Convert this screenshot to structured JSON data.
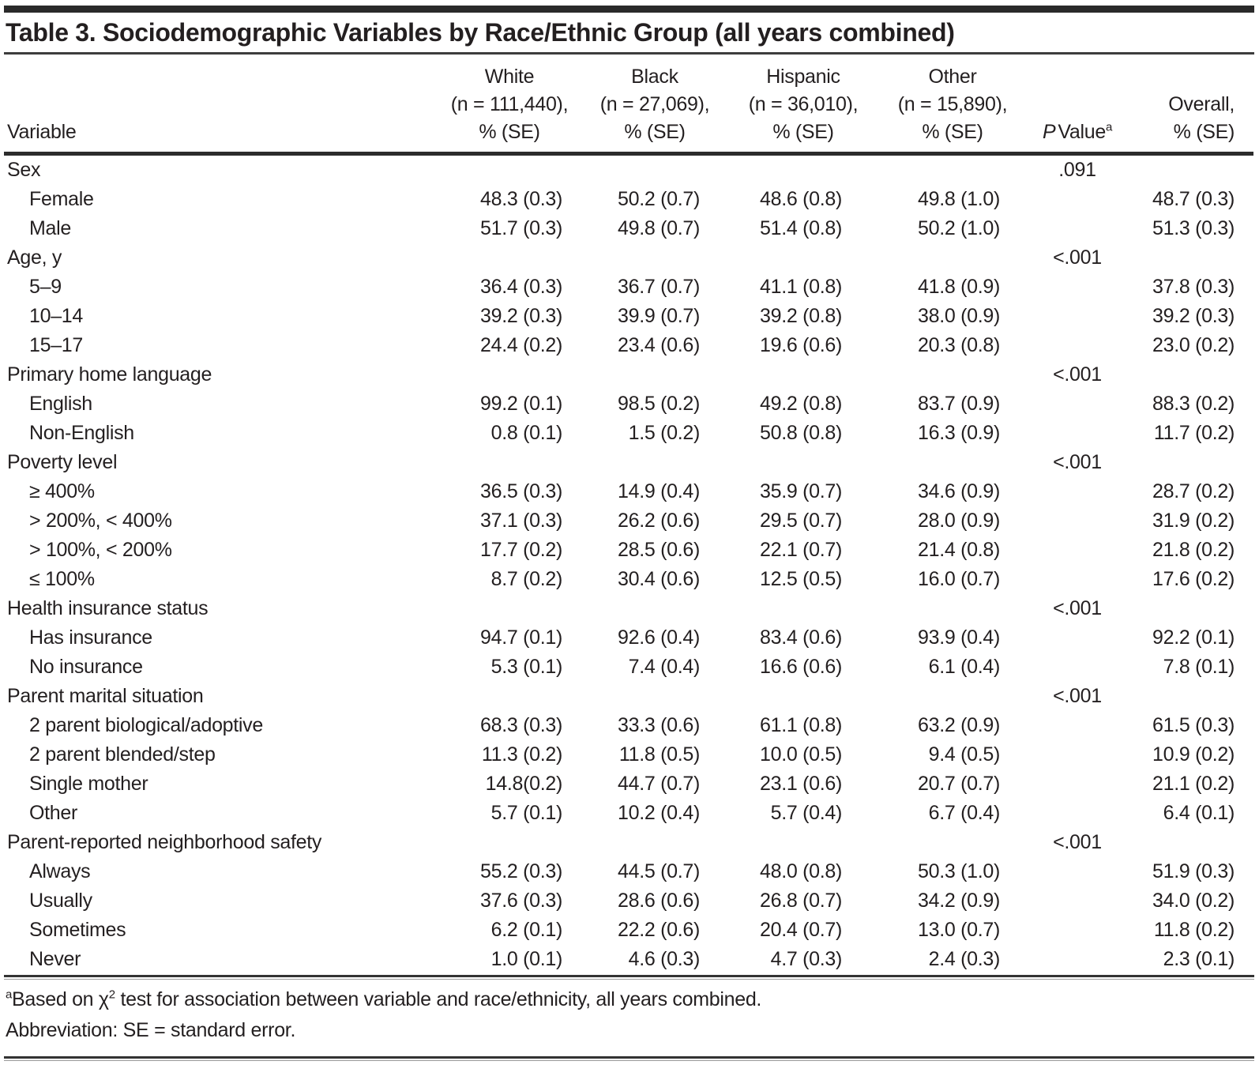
{
  "title": "Table 3. Sociodemographic Variables by Race/Ethnic Group (all years combined)",
  "header": {
    "variable": "Variable",
    "groups": [
      {
        "name": "White",
        "n": "(n = 111,440),",
        "pse": "% (SE)"
      },
      {
        "name": "Black",
        "n": "(n = 27,069),",
        "pse": "% (SE)"
      },
      {
        "name": "Hispanic",
        "n": "(n = 36,010),",
        "pse": "% (SE)"
      },
      {
        "name": "Other",
        "n": "(n = 15,890),",
        "pse": "% (SE)"
      }
    ],
    "p_value": {
      "italic": "P",
      "rest": "Value",
      "sup": "a"
    },
    "overall": {
      "line1": "Overall,",
      "line2": "% (SE)"
    }
  },
  "rows": [
    {
      "type": "section",
      "label": "Sex",
      "p": ".091"
    },
    {
      "type": "item",
      "label": "Female",
      "values": [
        "48.3 (0.3)",
        "50.2 (0.7)",
        "48.6 (0.8)",
        "49.8 (1.0)"
      ],
      "overall": "48.7 (0.3)"
    },
    {
      "type": "item",
      "label": "Male",
      "values": [
        "51.7 (0.3)",
        "49.8 (0.7)",
        "51.4 (0.8)",
        "50.2 (1.0)"
      ],
      "overall": "51.3 (0.3)"
    },
    {
      "type": "section",
      "label": "Age, y",
      "p": "<.001"
    },
    {
      "type": "item",
      "label": "5–9",
      "values": [
        "36.4 (0.3)",
        "36.7 (0.7)",
        "41.1 (0.8)",
        "41.8 (0.9)"
      ],
      "overall": "37.8 (0.3)"
    },
    {
      "type": "item",
      "label": "10–14",
      "values": [
        "39.2 (0.3)",
        "39.9 (0.7)",
        "39.2 (0.8)",
        "38.0 (0.9)"
      ],
      "overall": "39.2 (0.3)"
    },
    {
      "type": "item",
      "label": "15–17",
      "values": [
        "24.4 (0.2)",
        "23.4 (0.6)",
        "19.6 (0.6)",
        "20.3 (0.8)"
      ],
      "overall": "23.0 (0.2)"
    },
    {
      "type": "section",
      "label": "Primary home language",
      "p": "<.001"
    },
    {
      "type": "item",
      "label": "English",
      "values": [
        "99.2 (0.1)",
        "98.5 (0.2)",
        "49.2 (0.8)",
        "83.7 (0.9)"
      ],
      "overall": "88.3 (0.2)"
    },
    {
      "type": "item",
      "label": "Non-English",
      "values": [
        "0.8 (0.1)",
        "1.5 (0.2)",
        "50.8 (0.8)",
        "16.3 (0.9)"
      ],
      "overall": "11.7 (0.2)"
    },
    {
      "type": "section",
      "label": "Poverty level",
      "p": "<.001"
    },
    {
      "type": "item",
      "label": "≥ 400%",
      "values": [
        "36.5 (0.3)",
        "14.9 (0.4)",
        "35.9 (0.7)",
        "34.6 (0.9)"
      ],
      "overall": "28.7 (0.2)"
    },
    {
      "type": "item",
      "label": "> 200%, < 400%",
      "values": [
        "37.1 (0.3)",
        "26.2 (0.6)",
        "29.5 (0.7)",
        "28.0 (0.9)"
      ],
      "overall": "31.9 (0.2)"
    },
    {
      "type": "item",
      "label": "> 100%, < 200%",
      "values": [
        "17.7 (0.2)",
        "28.5 (0.6)",
        "22.1 (0.7)",
        "21.4 (0.8)"
      ],
      "overall": "21.8 (0.2)"
    },
    {
      "type": "item",
      "label": "≤ 100%",
      "values": [
        "8.7 (0.2)",
        "30.4 (0.6)",
        "12.5 (0.5)",
        "16.0 (0.7)"
      ],
      "overall": "17.6 (0.2)"
    },
    {
      "type": "section",
      "label": "Health insurance status",
      "p": "<.001"
    },
    {
      "type": "item",
      "label": "Has insurance",
      "values": [
        "94.7 (0.1)",
        "92.6 (0.4)",
        "83.4 (0.6)",
        "93.9 (0.4)"
      ],
      "overall": "92.2 (0.1)"
    },
    {
      "type": "item",
      "label": "No insurance",
      "values": [
        "5.3 (0.1)",
        "7.4 (0.4)",
        "16.6 (0.6)",
        "6.1 (0.4)"
      ],
      "overall": "7.8 (0.1)"
    },
    {
      "type": "section",
      "label": "Parent marital situation",
      "p": "<.001"
    },
    {
      "type": "item",
      "label": "2 parent biological/adoptive",
      "values": [
        "68.3 (0.3)",
        "33.3 (0.6)",
        "61.1 (0.8)",
        "63.2 (0.9)"
      ],
      "overall": "61.5 (0.3)"
    },
    {
      "type": "item",
      "label": "2 parent blended/step",
      "values": [
        "11.3 (0.2)",
        "11.8 (0.5)",
        "10.0 (0.5)",
        "9.4 (0.5)"
      ],
      "overall": "10.9 (0.2)"
    },
    {
      "type": "item",
      "label": "Single mother",
      "values": [
        "14.8(0.2)",
        "44.7 (0.7)",
        "23.1 (0.6)",
        "20.7 (0.7)"
      ],
      "overall": "21.1 (0.2)"
    },
    {
      "type": "item",
      "label": "Other",
      "values": [
        "5.7 (0.1)",
        "10.2 (0.4)",
        "5.7 (0.4)",
        "6.7 (0.4)"
      ],
      "overall": "6.4 (0.1)"
    },
    {
      "type": "section",
      "label": "Parent-reported neighborhood safety",
      "p": "<.001"
    },
    {
      "type": "item",
      "label": "Always",
      "values": [
        "55.2 (0.3)",
        "44.5 (0.7)",
        "48.0 (0.8)",
        "50.3 (1.0)"
      ],
      "overall": "51.9 (0.3)"
    },
    {
      "type": "item",
      "label": "Usually",
      "values": [
        "37.6 (0.3)",
        "28.6 (0.6)",
        "26.8 (0.7)",
        "34.2 (0.9)"
      ],
      "overall": "34.0 (0.2)"
    },
    {
      "type": "item",
      "label": "Sometimes",
      "values": [
        "6.2 (0.1)",
        "22.2 (0.6)",
        "20.4 (0.7)",
        "13.0 (0.7)"
      ],
      "overall": "11.8 (0.2)"
    },
    {
      "type": "item",
      "label": "Never",
      "values": [
        "1.0 (0.1)",
        "4.6 (0.3)",
        "4.7 (0.3)",
        "2.4 (0.3)"
      ],
      "overall": "2.3 (0.1)"
    }
  ],
  "footnotes": {
    "a_marker": "a",
    "a_text_1": "Based on χ",
    "a_sup_2": "2",
    "a_text_2": " test for association between variable and race/ethnicity, all years combined.",
    "abbreviation": "Abbreviation: SE = standard error."
  },
  "colors": {
    "text": "#231f20",
    "rule": "#2c2c2c",
    "background": "#ffffff"
  }
}
